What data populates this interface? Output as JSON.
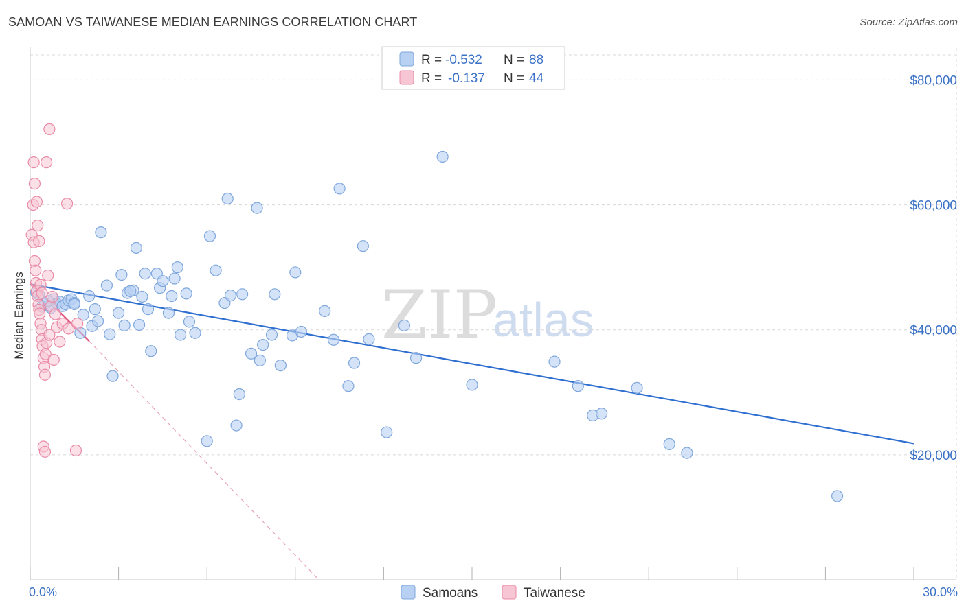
{
  "title": "SAMOAN VS TAIWANESE MEDIAN EARNINGS CORRELATION CHART",
  "source": "Source: ZipAtlas.com",
  "watermark": {
    "zip": "ZIP",
    "atlas": "atlas"
  },
  "legend": {
    "samoans": {
      "r_label": "R =",
      "r_value": "-0.532",
      "n_label": "N =",
      "n_value": "88"
    },
    "taiwanese": {
      "r_label": "R =",
      "r_value": "-0.137",
      "n_label": "N =",
      "n_value": "44"
    }
  },
  "colors": {
    "samoans_fill": "#b8d1f3",
    "samoans_stroke": "#7fa7dc",
    "samoans_line": "#2f6fd0",
    "taiwanese_fill": "#f7c6d4",
    "taiwanese_stroke": "#e98aa6",
    "taiwanese_line": "#e0507a",
    "grid": "#d8d8d8",
    "axis_text": "#3b72c6"
  },
  "chart_data": {
    "type": "scatter",
    "title": "SAMOAN VS TAIWANESE MEDIAN EARNINGS CORRELATION CHART",
    "xlabel": "",
    "ylabel": "Median Earnings",
    "xlim": [
      0,
      30
    ],
    "ylim": [
      0,
      84000
    ],
    "x_tick_labels": [
      "0.0%",
      "30.0%"
    ],
    "y_ticks": [
      20000,
      40000,
      60000,
      80000
    ],
    "y_tick_labels": [
      "$20,000",
      "$40,000",
      "$60,000",
      "$80,000"
    ],
    "grid": true,
    "legend_bottom": [
      "Samoans",
      "Taiwanese"
    ],
    "series": [
      {
        "name": "Samoans",
        "trend": {
          "x": [
            0.0,
            30.0
          ],
          "y": [
            47300,
            21800
          ]
        },
        "points": [
          [
            0.2,
            46000
          ],
          [
            0.3,
            45600
          ],
          [
            0.4,
            43700
          ],
          [
            0.5,
            44200
          ],
          [
            0.6,
            43800
          ],
          [
            0.7,
            43500
          ],
          [
            0.8,
            44900
          ],
          [
            0.9,
            44200
          ],
          [
            1.0,
            44500
          ],
          [
            1.1,
            43800
          ],
          [
            1.2,
            44100
          ],
          [
            1.3,
            44700
          ],
          [
            1.4,
            44900
          ],
          [
            1.5,
            44300
          ],
          [
            1.7,
            39500
          ],
          [
            1.8,
            42400
          ],
          [
            2.0,
            45400
          ],
          [
            2.1,
            40600
          ],
          [
            2.2,
            43300
          ],
          [
            2.3,
            41400
          ],
          [
            2.4,
            55600
          ],
          [
            2.6,
            47100
          ],
          [
            2.7,
            39300
          ],
          [
            2.8,
            32600
          ],
          [
            3.0,
            42700
          ],
          [
            3.1,
            48800
          ],
          [
            3.2,
            40700
          ],
          [
            3.3,
            45900
          ],
          [
            3.5,
            46300
          ],
          [
            3.6,
            53100
          ],
          [
            3.7,
            40800
          ],
          [
            3.8,
            45300
          ],
          [
            3.9,
            49000
          ],
          [
            4.0,
            43300
          ],
          [
            4.1,
            36600
          ],
          [
            4.3,
            49000
          ],
          [
            4.4,
            46700
          ],
          [
            4.5,
            47800
          ],
          [
            4.7,
            42700
          ],
          [
            4.8,
            45400
          ],
          [
            4.9,
            48200
          ],
          [
            5.0,
            50000
          ],
          [
            5.1,
            39200
          ],
          [
            5.4,
            41300
          ],
          [
            5.6,
            39500
          ],
          [
            6.0,
            22200
          ],
          [
            6.1,
            55000
          ],
          [
            6.3,
            49500
          ],
          [
            6.6,
            44300
          ],
          [
            6.7,
            61000
          ],
          [
            6.8,
            45500
          ],
          [
            7.0,
            24700
          ],
          [
            7.1,
            29700
          ],
          [
            7.2,
            45700
          ],
          [
            7.5,
            36200
          ],
          [
            7.7,
            59500
          ],
          [
            7.8,
            35100
          ],
          [
            7.9,
            37600
          ],
          [
            8.2,
            39200
          ],
          [
            8.3,
            45700
          ],
          [
            8.5,
            34300
          ],
          [
            8.9,
            39100
          ],
          [
            9.0,
            49200
          ],
          [
            9.2,
            39700
          ],
          [
            10.0,
            43000
          ],
          [
            10.3,
            38400
          ],
          [
            10.5,
            62600
          ],
          [
            10.8,
            31000
          ],
          [
            11.0,
            34700
          ],
          [
            11.3,
            53400
          ],
          [
            11.5,
            38500
          ],
          [
            12.1,
            23600
          ],
          [
            12.7,
            40700
          ],
          [
            13.1,
            35500
          ],
          [
            14.0,
            67700
          ],
          [
            15.0,
            31200
          ],
          [
            17.8,
            34900
          ],
          [
            18.6,
            31000
          ],
          [
            19.1,
            26300
          ],
          [
            19.4,
            26600
          ],
          [
            20.6,
            30700
          ],
          [
            21.7,
            21700
          ],
          [
            22.3,
            20300
          ],
          [
            27.4,
            13400
          ],
          [
            1.5,
            44100
          ],
          [
            3.4,
            46200
          ],
          [
            5.3,
            45800
          ],
          [
            0.6,
            44600
          ]
        ]
      },
      {
        "name": "Taiwanese",
        "trend": {
          "x": [
            0.0,
            2.0
          ],
          "y": [
            47500,
            38200
          ]
        },
        "trend_extended": {
          "x": [
            2.0,
            9.8
          ],
          "y": [
            38200,
            0
          ]
        },
        "points": [
          [
            0.05,
            55200
          ],
          [
            0.1,
            60000
          ],
          [
            0.12,
            54000
          ],
          [
            0.15,
            51000
          ],
          [
            0.18,
            49500
          ],
          [
            0.2,
            47500
          ],
          [
            0.22,
            46200
          ],
          [
            0.25,
            45400
          ],
          [
            0.28,
            44000
          ],
          [
            0.3,
            43200
          ],
          [
            0.32,
            42600
          ],
          [
            0.35,
            41000
          ],
          [
            0.38,
            40000
          ],
          [
            0.4,
            38500
          ],
          [
            0.42,
            37400
          ],
          [
            0.45,
            35500
          ],
          [
            0.48,
            34100
          ],
          [
            0.5,
            32800
          ],
          [
            0.52,
            36100
          ],
          [
            0.55,
            37900
          ],
          [
            0.6,
            48700
          ],
          [
            0.65,
            39200
          ],
          [
            0.7,
            43800
          ],
          [
            0.75,
            45300
          ],
          [
            0.8,
            35200
          ],
          [
            0.85,
            42500
          ],
          [
            0.9,
            40400
          ],
          [
            1.0,
            38100
          ],
          [
            1.1,
            41000
          ],
          [
            1.3,
            40200
          ],
          [
            1.6,
            41000
          ],
          [
            0.12,
            66800
          ],
          [
            0.15,
            63400
          ],
          [
            0.22,
            60500
          ],
          [
            0.25,
            56700
          ],
          [
            0.3,
            54200
          ],
          [
            0.35,
            47200
          ],
          [
            0.4,
            45900
          ],
          [
            0.45,
            21300
          ],
          [
            0.5,
            20500
          ],
          [
            0.55,
            66800
          ],
          [
            0.65,
            72100
          ],
          [
            1.25,
            60200
          ],
          [
            1.55,
            20700
          ]
        ]
      }
    ]
  }
}
